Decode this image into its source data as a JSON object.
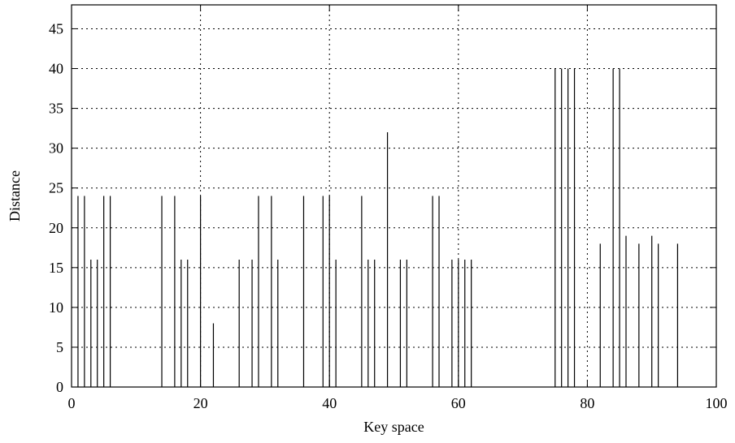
{
  "chart_data": {
    "type": "bar",
    "style": "impulse",
    "title": "",
    "xlabel": "Key space",
    "ylabel": "Distance",
    "xlim": [
      0,
      100
    ],
    "ylim": [
      0,
      48
    ],
    "xticks": [
      0,
      20,
      40,
      60,
      80,
      100
    ],
    "yticks": [
      0,
      5,
      10,
      15,
      20,
      25,
      30,
      35,
      40,
      45
    ],
    "grid": true,
    "legend": "none",
    "bar_color": "#000000",
    "points": [
      {
        "x": 1,
        "y": 24
      },
      {
        "x": 2,
        "y": 24
      },
      {
        "x": 3,
        "y": 16
      },
      {
        "x": 4,
        "y": 16
      },
      {
        "x": 5,
        "y": 24
      },
      {
        "x": 6,
        "y": 24
      },
      {
        "x": 14,
        "y": 24
      },
      {
        "x": 16,
        "y": 24
      },
      {
        "x": 17,
        "y": 16
      },
      {
        "x": 18,
        "y": 16
      },
      {
        "x": 20,
        "y": 24
      },
      {
        "x": 22,
        "y": 8
      },
      {
        "x": 26,
        "y": 16
      },
      {
        "x": 28,
        "y": 16
      },
      {
        "x": 29,
        "y": 24
      },
      {
        "x": 31,
        "y": 24
      },
      {
        "x": 32,
        "y": 16
      },
      {
        "x": 36,
        "y": 24
      },
      {
        "x": 39,
        "y": 24
      },
      {
        "x": 40,
        "y": 24
      },
      {
        "x": 41,
        "y": 16
      },
      {
        "x": 45,
        "y": 24
      },
      {
        "x": 46,
        "y": 16
      },
      {
        "x": 47,
        "y": 16
      },
      {
        "x": 49,
        "y": 32
      },
      {
        "x": 51,
        "y": 16
      },
      {
        "x": 52,
        "y": 16
      },
      {
        "x": 56,
        "y": 24
      },
      {
        "x": 57,
        "y": 24
      },
      {
        "x": 59,
        "y": 16
      },
      {
        "x": 60,
        "y": 16
      },
      {
        "x": 61,
        "y": 16
      },
      {
        "x": 62,
        "y": 16
      },
      {
        "x": 75,
        "y": 40
      },
      {
        "x": 76,
        "y": 40
      },
      {
        "x": 77,
        "y": 40
      },
      {
        "x": 78,
        "y": 40
      },
      {
        "x": 82,
        "y": 18
      },
      {
        "x": 84,
        "y": 40
      },
      {
        "x": 85,
        "y": 40
      },
      {
        "x": 86,
        "y": 19
      },
      {
        "x": 88,
        "y": 18
      },
      {
        "x": 90,
        "y": 19
      },
      {
        "x": 91,
        "y": 18
      },
      {
        "x": 94,
        "y": 18
      }
    ]
  }
}
